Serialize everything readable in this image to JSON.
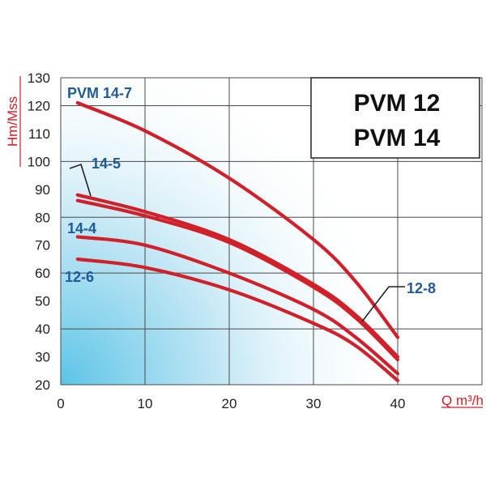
{
  "chart_data": {
    "type": "line",
    "title_lines": [
      "PVM 12",
      "PVM 14"
    ],
    "xlabel": "Q m³/h",
    "ylabel": "Hm/Mss",
    "xlim": [
      0,
      50
    ],
    "ylim": [
      20,
      130
    ],
    "x_ticks": [
      "0",
      "10",
      "20",
      "30",
      "40"
    ],
    "y_ticks": [
      "20",
      "30",
      "40",
      "50",
      "60",
      "70",
      "80",
      "90",
      "100",
      "110",
      "120",
      "130"
    ],
    "grid": true,
    "series": [
      {
        "name": "PVM 14-7",
        "x": [
          2,
          10,
          20,
          30,
          35,
          40
        ],
        "y": [
          121,
          111,
          94,
          72,
          57,
          37
        ]
      },
      {
        "name": "14-5",
        "x": [
          2,
          10,
          20,
          30,
          35,
          40
        ],
        "y": [
          88,
          82,
          72,
          56,
          45,
          30
        ]
      },
      {
        "name": "12-8",
        "x": [
          2,
          10,
          20,
          30,
          35,
          40
        ],
        "y": [
          86,
          80.5,
          71,
          55,
          44,
          29
        ]
      },
      {
        "name": "14-4",
        "x": [
          2,
          10,
          20,
          30,
          35,
          40
        ],
        "y": [
          73,
          70,
          60,
          47,
          37,
          24
        ]
      },
      {
        "name": "12-6",
        "x": [
          2,
          10,
          20,
          30,
          35,
          40
        ],
        "y": [
          65,
          62,
          54,
          42,
          34,
          21.5
        ]
      }
    ],
    "colors": {
      "curve": "#d0202a",
      "labels": "#1f5a99",
      "axis_label": "#d0202a",
      "gradient": "#5bc4e6"
    }
  }
}
